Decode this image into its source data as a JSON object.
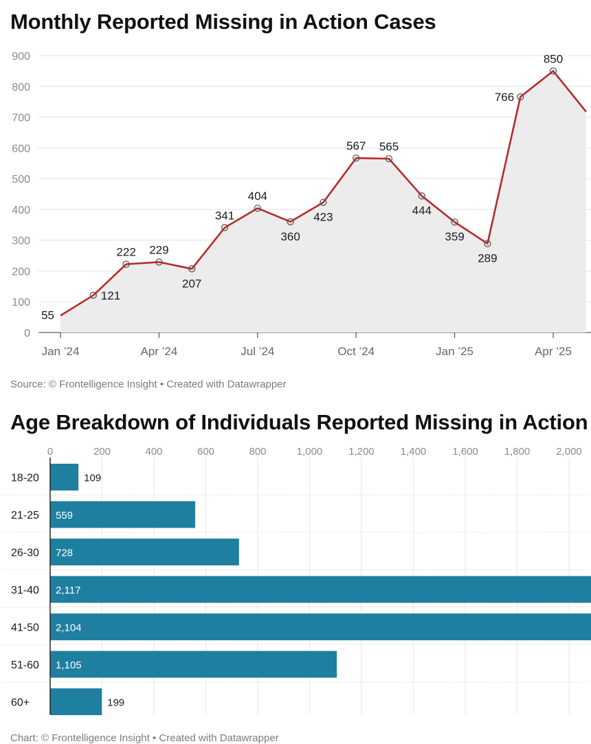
{
  "colors": {
    "line": "#b52a2a",
    "area": "#ececec",
    "bar": "#1f7fa0",
    "grid": "#e2e2e2",
    "text_muted": "#8a8a8a"
  },
  "chart1": {
    "title": "Monthly Reported Missing in Action Cases",
    "source": "Source: © Frontelligence Insight • Created with Datawrapper"
  },
  "chart2": {
    "title": "Age Breakdown of Individuals Reported Missing in Action",
    "source": "Chart: © Frontelligence Insight • Created with Datawrapper"
  },
  "chart_data": [
    {
      "type": "line",
      "title": "Monthly Reported Missing in Action Cases",
      "x": [
        "Jan 2024",
        "Feb 2024",
        "Mar 2024",
        "Apr 2024",
        "May 2024",
        "Jun 2024",
        "Jul 2024",
        "Aug 2024",
        "Sep 2024",
        "Oct 2024",
        "Nov 2024",
        "Dec 2024",
        "Jan 2025",
        "Feb 2025",
        "Mar 2025",
        "Apr 2025",
        "May 2025"
      ],
      "values": [
        55,
        121,
        222,
        229,
        207,
        341,
        404,
        360,
        423,
        567,
        565,
        444,
        359,
        289,
        766,
        850,
        718
      ],
      "labels": [
        "55",
        "121",
        "222",
        "229",
        "207",
        "341",
        "404",
        "360",
        "423",
        "567",
        "565",
        "444",
        "359",
        "289",
        "766",
        "850",
        ""
      ],
      "x_ticks": [
        "Jan ’24",
        "Apr ’24",
        "Jul ’24",
        "Oct ’24",
        "Jan ’25",
        "Apr ’25"
      ],
      "y_ticks": [
        0,
        100,
        200,
        300,
        400,
        500,
        600,
        700,
        800,
        900
      ],
      "ylim": [
        0,
        900
      ],
      "area_fill": true,
      "markers": true,
      "grid": true
    },
    {
      "type": "bar",
      "orientation": "horizontal",
      "title": "Age Breakdown of Individuals Reported Missing in Action",
      "categories": [
        "18-20",
        "21-25",
        "26-30",
        "31-40",
        "41-50",
        "51-60",
        "60+"
      ],
      "values": [
        109,
        559,
        728,
        2117,
        2104,
        1105,
        199
      ],
      "value_labels": [
        "109",
        "559",
        "728",
        "2,117",
        "2,104",
        "1,105",
        "199"
      ],
      "x_ticks": [
        "0",
        "200",
        "400",
        "600",
        "800",
        "1,000",
        "1,200",
        "1,400",
        "1,600",
        "1,800",
        "2,000"
      ],
      "xlim": [
        0,
        2080
      ],
      "grid": true
    }
  ]
}
